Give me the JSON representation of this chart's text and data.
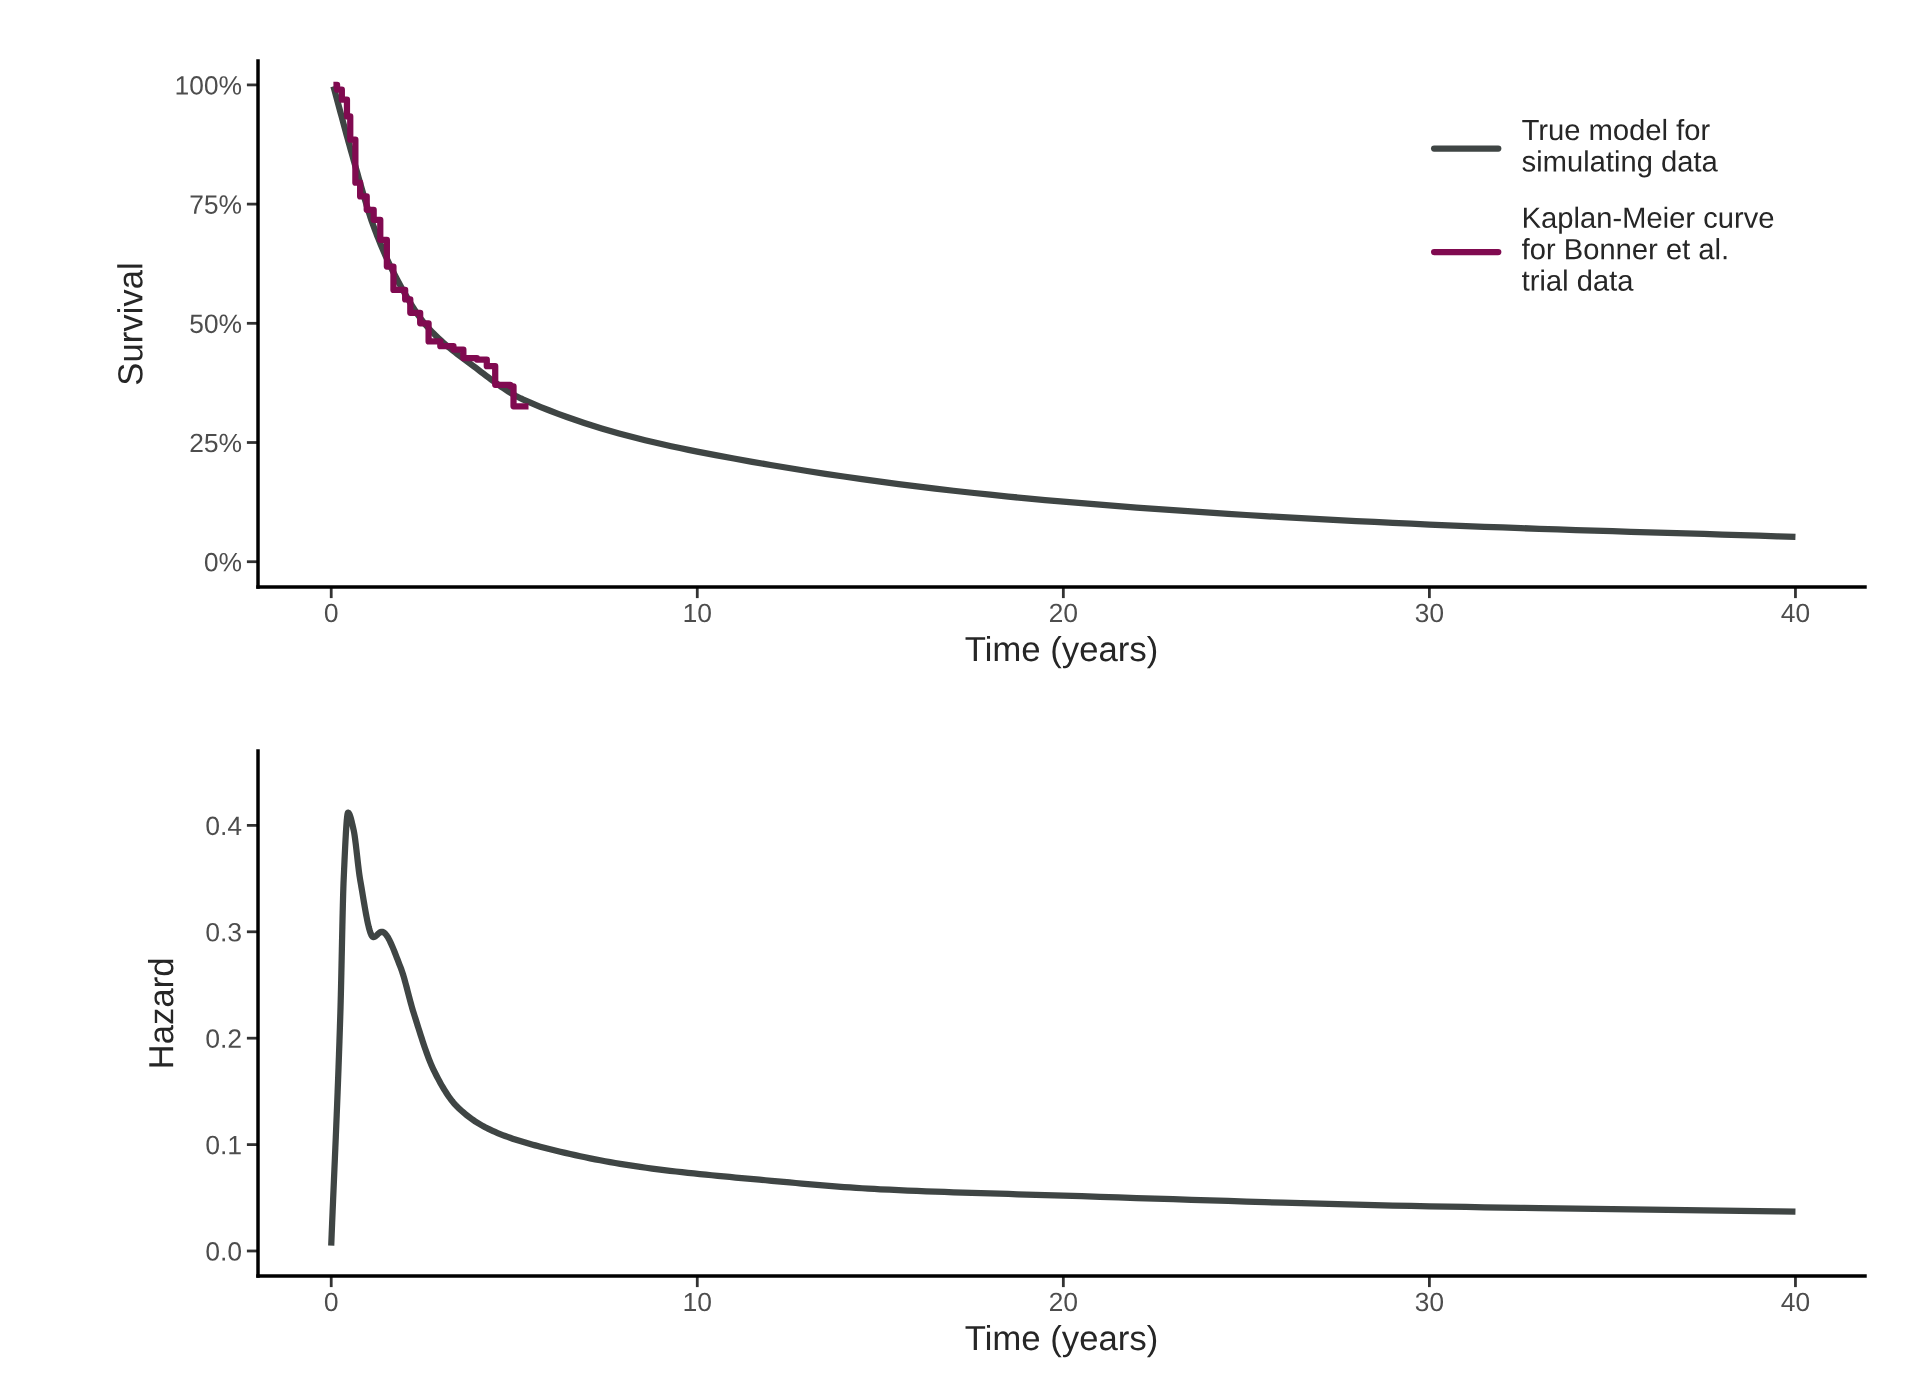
{
  "chart_data": [
    {
      "type": "line",
      "xlabel": "Time (years)",
      "ylabel": "Survival",
      "xlim": [
        -2.0,
        41.9
      ],
      "xticks": [
        0,
        10,
        20,
        30,
        40
      ],
      "ylim": [
        -5.3,
        105
      ],
      "yticks": [
        {
          "value": 0,
          "label": "0%"
        },
        {
          "value": 25,
          "label": "25%"
        },
        {
          "value": 50,
          "label": "50%"
        },
        {
          "value": 75,
          "label": "75%"
        },
        {
          "value": 100,
          "label": "100%"
        }
      ],
      "legend": "top right",
      "series": [
        {
          "name": "True model for\nsimulating data",
          "color": "#3f4544",
          "x": [
            0.06,
            0.61,
            1.16,
            1.8,
            2.61,
            3.89,
            5.25,
            10,
            20,
            30,
            40
          ],
          "values": [
            99.7,
            84.3,
            70.3,
            59.2,
            49.4,
            41.0,
            34.0,
            23.1,
            12.6,
            7.8,
            5.2
          ]
        },
        {
          "name": "Kaplan-Meier curve\nfor Bonner et al.\ntrial data",
          "color": "#800a50",
          "type": "step",
          "x": [
            0.06,
            0.16,
            0.29,
            0.43,
            0.52,
            0.66,
            0.79,
            0.97,
            1.16,
            1.34,
            1.52,
            1.7,
            2.02,
            2.16,
            2.43,
            2.66,
            2.98,
            3.34,
            3.61,
            3.98,
            4.25,
            4.48,
            4.89,
            4.98,
            5.39
          ],
          "values": [
            100,
            99,
            96.9,
            93.4,
            88.5,
            79.5,
            76.6,
            73.8,
            71.7,
            67.5,
            61.9,
            57.0,
            55.0,
            52.2,
            50.0,
            46.2,
            45.2,
            44.5,
            42.7,
            42.4,
            41.0,
            37.1,
            36.8,
            32.6,
            32.6
          ]
        }
      ]
    },
    {
      "type": "line",
      "xlabel": "Time (years)",
      "ylabel": "Hazard",
      "xlim": [
        -2.0,
        41.9
      ],
      "xticks": [
        0,
        10,
        20,
        30,
        40
      ],
      "ylim": [
        -0.0235,
        0.47
      ],
      "yticks": [
        {
          "value": 0,
          "label": "0.0"
        },
        {
          "value": 0.1,
          "label": "0.1"
        },
        {
          "value": 0.2,
          "label": "0.2"
        },
        {
          "value": 0.3,
          "label": "0.3"
        },
        {
          "value": 0.4,
          "label": "0.4"
        }
      ],
      "series": [
        {
          "color": "#3f4544",
          "x": [
            0,
            0.25,
            0.34,
            0.46,
            0.61,
            0.79,
            1.15,
            1.38,
            1.89,
            2.25,
            2.8,
            3.43,
            4.34,
            5.71,
            8.44,
            11.7,
            15,
            20,
            30,
            40
          ],
          "values": [
            0.005,
            0.224,
            0.349,
            0.412,
            0.396,
            0.349,
            0.295,
            0.3,
            0.267,
            0.224,
            0.17,
            0.136,
            0.114,
            0.098,
            0.079,
            0.067,
            0.058,
            0.052,
            0.042,
            0.037
          ]
        }
      ]
    }
  ]
}
